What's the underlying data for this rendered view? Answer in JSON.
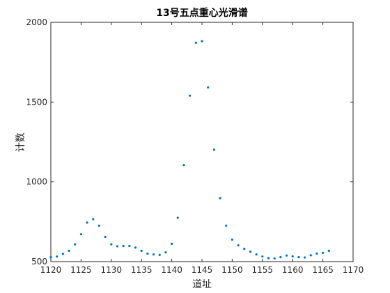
{
  "chart_data": {
    "type": "scatter",
    "title": "13号五点重心光滑谱",
    "xlabel": "道址",
    "ylabel": "计数",
    "xlim": [
      1120,
      1170
    ],
    "ylim": [
      500,
      2000
    ],
    "xticks": [
      1120,
      1125,
      1130,
      1135,
      1140,
      1145,
      1150,
      1155,
      1160,
      1165,
      1170
    ],
    "yticks": [
      500,
      1000,
      1500,
      2000
    ],
    "grid": false,
    "legend": "none",
    "marker_color": "#0072BD",
    "series": [
      {
        "x": [
          1120,
          1121,
          1122,
          1123,
          1124,
          1125,
          1126,
          1127,
          1128,
          1129,
          1130,
          1131,
          1132,
          1133,
          1134,
          1135,
          1136,
          1137,
          1138,
          1139,
          1140,
          1141,
          1142,
          1143,
          1144,
          1145,
          1146,
          1147,
          1148,
          1149,
          1150,
          1151,
          1152,
          1153,
          1154,
          1155,
          1156,
          1157,
          1158,
          1159,
          1160,
          1161,
          1162,
          1163,
          1164,
          1165,
          1166
        ],
        "y": [
          528,
          532,
          548,
          568,
          608,
          672,
          745,
          766,
          725,
          655,
          608,
          596,
          598,
          598,
          588,
          568,
          550,
          545,
          542,
          558,
          612,
          775,
          1105,
          1540,
          1872,
          1882,
          1592,
          1202,
          898,
          725,
          638,
          602,
          580,
          562,
          545,
          532,
          522,
          520,
          528,
          538,
          533,
          528,
          526,
          540,
          550,
          555,
          568
        ]
      }
    ]
  }
}
